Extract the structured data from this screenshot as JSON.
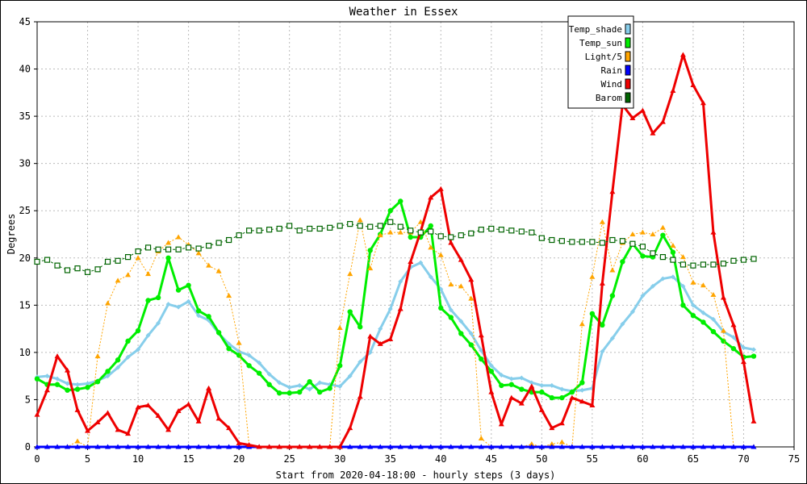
{
  "chart_data": {
    "type": "line",
    "title": "Weather in Essex",
    "xlabel": "Start from 2020-04-18:00 - hourly steps (3 days)",
    "ylabel": "Degrees",
    "xlim": [
      0,
      75
    ],
    "ylim": [
      0,
      45
    ],
    "xticks": [
      0,
      5,
      10,
      15,
      20,
      25,
      30,
      35,
      40,
      45,
      50,
      55,
      60,
      65,
      70,
      75
    ],
    "yticks": [
      0,
      5,
      10,
      15,
      20,
      25,
      30,
      35,
      40,
      45
    ],
    "grid": true,
    "legend_position": "top-right",
    "x": [
      0,
      1,
      2,
      3,
      4,
      5,
      6,
      7,
      8,
      9,
      10,
      11,
      12,
      13,
      14,
      15,
      16,
      17,
      18,
      19,
      20,
      21,
      22,
      23,
      24,
      25,
      26,
      27,
      28,
      29,
      30,
      31,
      32,
      33,
      34,
      35,
      36,
      37,
      38,
      39,
      40,
      41,
      42,
      43,
      44,
      45,
      46,
      47,
      48,
      49,
      50,
      51,
      52,
      53,
      54,
      55,
      56,
      57,
      58,
      59,
      60,
      61,
      62,
      63,
      64,
      65,
      66,
      67,
      68,
      69,
      70,
      71
    ],
    "series": [
      {
        "name": "Temp_shade",
        "color": "#87ceeb",
        "marker": "diamond",
        "dash": "",
        "width": 3,
        "values": [
          7.4,
          7.5,
          7.2,
          6.7,
          6.6,
          6.7,
          7.0,
          7.5,
          8.4,
          9.5,
          10.3,
          11.8,
          13.1,
          15.1,
          14.8,
          15.4,
          13.9,
          13.4,
          12.0,
          10.9,
          10.1,
          9.7,
          8.9,
          7.7,
          6.8,
          6.3,
          6.5,
          6.1,
          6.8,
          6.6,
          6.4,
          7.5,
          9.0,
          10.0,
          12.5,
          14.6,
          17.5,
          19.0,
          19.5,
          18.0,
          16.7,
          14.5,
          13.3,
          12.0,
          10.2,
          8.6,
          7.6,
          7.2,
          7.3,
          6.8,
          6.5,
          6.5,
          6.1,
          5.9,
          6.0,
          6.2,
          10.1,
          11.5,
          13.0,
          14.3,
          16.0,
          17.0,
          17.8,
          18.0,
          17.0,
          15.0,
          14.2,
          13.5,
          12.2,
          11.6,
          10.5,
          10.3
        ]
      },
      {
        "name": "Temp_sun",
        "color": "#00ee00",
        "marker": "dot",
        "dash": "",
        "width": 3,
        "values": [
          7.2,
          6.6,
          6.6,
          6.0,
          6.1,
          6.3,
          6.9,
          8.0,
          9.2,
          11.2,
          12.3,
          15.5,
          15.8,
          20.0,
          16.6,
          17.1,
          14.4,
          13.8,
          12.1,
          10.4,
          9.7,
          8.6,
          7.8,
          6.6,
          5.7,
          5.7,
          5.8,
          6.9,
          5.8,
          6.2,
          8.6,
          14.3,
          12.7,
          20.8,
          22.5,
          25.0,
          26.0,
          22.2,
          22.2,
          23.4,
          14.7,
          13.7,
          12.0,
          10.8,
          9.3,
          8.0,
          6.5,
          6.6,
          6.1,
          5.8,
          5.8,
          5.2,
          5.2,
          5.8,
          6.8,
          14.1,
          12.9,
          16.0,
          19.6,
          21.5,
          20.2,
          20.1,
          22.4,
          20.6,
          15.0,
          13.9,
          13.2,
          12.2,
          11.2,
          10.4,
          9.5,
          9.6
        ]
      },
      {
        "name": "Light/5",
        "color": "#ffa500",
        "marker": "triangle",
        "dash": "2,2",
        "width": 1,
        "values": [
          0,
          0,
          0,
          0,
          0.6,
          0,
          9.6,
          15.2,
          17.6,
          18.2,
          20.0,
          18.3,
          20.7,
          21.6,
          22.2,
          21.4,
          20.5,
          19.2,
          18.6,
          16.0,
          11.0,
          0.2,
          0,
          0,
          0,
          0,
          0,
          0,
          0,
          0,
          12.6,
          18.3,
          24.0,
          18.9,
          22.4,
          22.7,
          22.7,
          22.7,
          23.8,
          21.1,
          20.3,
          17.2,
          17.0,
          15.7,
          0.9,
          0,
          0,
          0,
          0,
          0.3,
          0,
          0.3,
          0.5,
          0,
          13.0,
          18.0,
          23.8,
          18.7,
          21.6,
          22.5,
          22.7,
          22.5,
          23.2,
          21.3,
          20.1,
          17.4,
          17.1,
          16.1,
          12.3,
          0,
          0,
          0
        ]
      },
      {
        "name": "Rain",
        "color": "#0000ff",
        "marker": "triangle",
        "dash": "",
        "width": 3,
        "values": [
          0,
          0,
          0,
          0,
          0,
          0,
          0,
          0,
          0,
          0,
          0,
          0,
          0,
          0,
          0,
          0,
          0,
          0,
          0,
          0,
          0,
          0,
          0,
          0,
          0,
          0,
          0,
          0,
          0,
          0,
          0,
          0,
          0,
          0,
          0,
          0,
          0,
          0,
          0,
          0,
          0,
          0,
          0,
          0,
          0,
          0,
          0,
          0,
          0,
          0,
          0,
          0,
          0,
          0,
          0,
          0,
          0,
          0,
          0,
          0,
          0,
          0,
          0,
          0,
          0,
          0,
          0,
          0,
          0,
          0,
          0,
          0
        ]
      },
      {
        "name": "Wind",
        "color": "#ee0000",
        "marker": "triangle",
        "dash": "",
        "width": 3,
        "values": [
          3.4,
          6.0,
          9.6,
          8.1,
          3.9,
          1.7,
          2.6,
          3.6,
          1.8,
          1.4,
          4.2,
          4.4,
          3.3,
          1.8,
          3.8,
          4.5,
          2.7,
          6.2,
          3.0,
          2.0,
          0.4,
          0.2,
          0,
          0,
          0,
          0,
          0,
          0,
          0,
          0,
          0,
          2.0,
          5.3,
          11.7,
          10.9,
          11.4,
          14.6,
          19.6,
          22.8,
          26.4,
          27.3,
          21.6,
          19.8,
          17.7,
          11.8,
          5.8,
          2.4,
          5.2,
          4.6,
          6.4,
          3.9,
          2.0,
          2.5,
          5.2,
          4.8,
          4.4,
          17.3,
          27.0,
          36.2,
          34.8,
          35.6,
          33.2,
          34.4,
          37.7,
          41.5,
          38.3,
          36.4,
          22.7,
          15.8,
          12.9,
          9.0,
          2.7
        ]
      },
      {
        "name": "Barom",
        "color": "#006400",
        "marker": "square",
        "dash": "3,3",
        "width": 1,
        "values": [
          19.6,
          19.8,
          19.2,
          18.7,
          18.9,
          18.5,
          18.8,
          19.6,
          19.7,
          20.1,
          20.7,
          21.1,
          20.9,
          20.9,
          20.9,
          21.1,
          21.0,
          21.3,
          21.6,
          21.9,
          22.4,
          22.9,
          22.9,
          23.0,
          23.1,
          23.4,
          22.9,
          23.1,
          23.1,
          23.2,
          23.4,
          23.6,
          23.4,
          23.3,
          23.4,
          23.8,
          23.3,
          22.9,
          22.7,
          22.8,
          22.3,
          22.2,
          22.4,
          22.6,
          23.0,
          23.1,
          23.0,
          22.9,
          22.8,
          22.7,
          22.1,
          21.9,
          21.8,
          21.7,
          21.7,
          21.7,
          21.6,
          21.9,
          21.8,
          21.5,
          21.2,
          20.5,
          20.1,
          19.8,
          19.3,
          19.2,
          19.3,
          19.3,
          19.4,
          19.7,
          19.8,
          19.9
        ]
      }
    ]
  }
}
